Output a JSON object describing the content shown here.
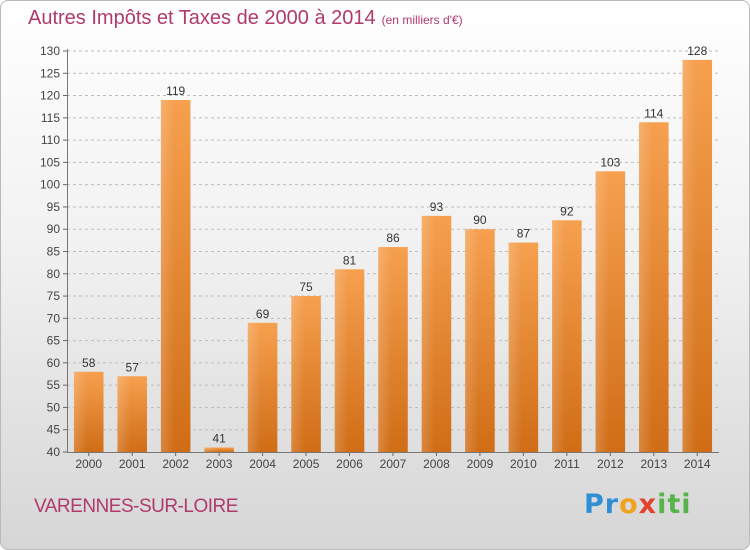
{
  "title": "Autres Impôts et Taxes de 2000 à 2014",
  "subtitle": "(en milliers d'€)",
  "place": "VARENNES-SUR-LOIRE",
  "logo": [
    "Pr",
    "o",
    "x",
    "iti"
  ],
  "colors": {
    "bar_light": "#f6a04f",
    "bar_dark": "#d06d16",
    "title": "#b03a6a",
    "grid": "#bcbcbc"
  },
  "chart_data": {
    "type": "bar",
    "title": "Autres Impôts et Taxes de 2000 à 2014",
    "subtitle": "(en milliers d'€)",
    "categories": [
      "2000",
      "2001",
      "2002",
      "2003",
      "2004",
      "2005",
      "2006",
      "2007",
      "2008",
      "2009",
      "2010",
      "2011",
      "2012",
      "2013",
      "2014"
    ],
    "values": [
      58,
      57,
      119,
      41,
      69,
      75,
      81,
      86,
      93,
      90,
      87,
      92,
      103,
      114,
      128
    ],
    "ylim": [
      40,
      130
    ],
    "yticks": [
      40,
      45,
      50,
      55,
      60,
      65,
      70,
      75,
      80,
      85,
      90,
      95,
      100,
      105,
      110,
      115,
      120,
      125,
      130
    ],
    "grid": "dashed horizontal",
    "legend": "none",
    "data_labels": true
  }
}
